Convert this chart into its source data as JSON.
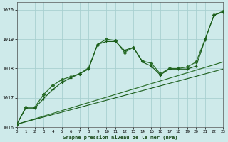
{
  "title": "Graphe pression niveau de la mer (hPa)",
  "background_color": "#ceeaea",
  "grid_color": "#a8d0d0",
  "xlim": [
    0,
    23
  ],
  "ylim": [
    1016,
    1020.25
  ],
  "yticks": [
    1016,
    1017,
    1018,
    1019,
    1020
  ],
  "xticks": [
    0,
    1,
    2,
    3,
    4,
    5,
    6,
    7,
    8,
    9,
    10,
    11,
    12,
    13,
    14,
    15,
    16,
    17,
    18,
    19,
    20,
    21,
    22,
    23
  ],
  "series": [
    {
      "x": [
        0,
        1,
        2,
        3,
        4,
        5,
        6,
        7,
        8,
        9,
        10,
        11,
        12,
        13,
        14,
        15,
        16,
        17,
        18,
        19,
        20,
        21,
        22,
        23
      ],
      "y": [
        1016.1,
        1016.68,
        1016.68,
        1017.12,
        1017.42,
        1017.62,
        1017.72,
        1017.82,
        1018.02,
        1018.82,
        1019.0,
        1018.95,
        1018.55,
        1018.72,
        1018.25,
        1018.18,
        1017.82,
        1018.0,
        1018.0,
        1018.05,
        1018.22,
        1019.0,
        1019.82,
        1019.95
      ],
      "color": "#2a6e2a",
      "marker": "D",
      "markersize": 2.2,
      "linewidth": 0.9
    },
    {
      "x": [
        0,
        1,
        2,
        3,
        4,
        5,
        6,
        7,
        8,
        9,
        10,
        11,
        12,
        13,
        14,
        15,
        16,
        17,
        18,
        19,
        20,
        21,
        22,
        23
      ],
      "y": [
        1016.1,
        1016.65,
        1016.65,
        1016.98,
        1017.28,
        1017.52,
        1017.68,
        1017.82,
        1017.98,
        1018.82,
        1018.92,
        1018.92,
        1018.62,
        1018.72,
        1018.22,
        1018.08,
        1017.78,
        1017.98,
        1017.98,
        1017.98,
        1018.08,
        1018.98,
        1019.82,
        1019.92
      ],
      "color": "#1a5c1a",
      "marker": "+",
      "markersize": 3.5,
      "linewidth": 0.85
    },
    {
      "x": [
        0,
        23
      ],
      "y": [
        1016.1,
        1018.22
      ],
      "color": "#2a6e2a",
      "marker": null,
      "markersize": 0,
      "linewidth": 0.85
    },
    {
      "x": [
        0,
        23
      ],
      "y": [
        1016.1,
        1017.98
      ],
      "color": "#1a5c1a",
      "marker": null,
      "markersize": 0,
      "linewidth": 0.8
    }
  ]
}
